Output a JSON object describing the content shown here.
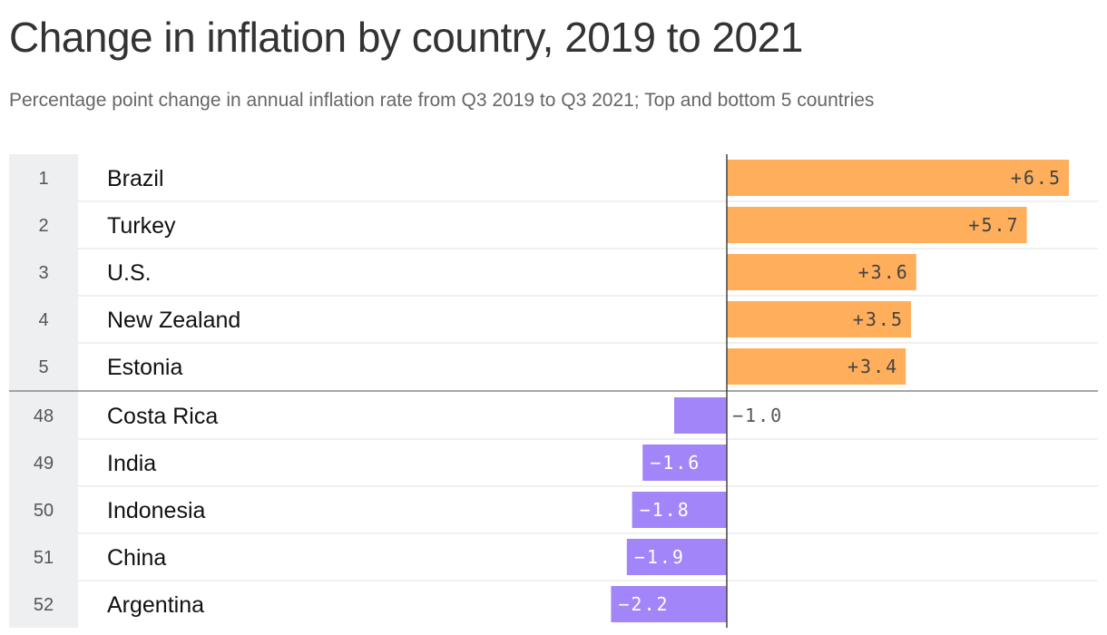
{
  "header": {
    "title": "Change in inflation by country, 2019 to 2021",
    "subtitle": "Percentage point change in annual inflation rate from Q3 2019 to Q3 2021; Top and bottom 5 countries"
  },
  "colors": {
    "positive": "#ffae5b",
    "negative": "#a285f9",
    "rank_bg": "#eeeff1",
    "divider": "#e2e2e2",
    "axis": "#444444"
  },
  "chart_data": {
    "type": "bar",
    "orientation": "horizontal",
    "xlim": [
      -2.2,
      6.5
    ],
    "rows": [
      {
        "rank": "1",
        "country": "Brazil",
        "value": 6.5,
        "label": "+6.5",
        "group": "top"
      },
      {
        "rank": "2",
        "country": "Turkey",
        "value": 5.7,
        "label": "+5.7",
        "group": "top"
      },
      {
        "rank": "3",
        "country": "U.S.",
        "value": 3.6,
        "label": "+3.6",
        "group": "top"
      },
      {
        "rank": "4",
        "country": "New Zealand",
        "value": 3.5,
        "label": "+3.5",
        "group": "top"
      },
      {
        "rank": "5",
        "country": "Estonia",
        "value": 3.4,
        "label": "+3.4",
        "group": "top"
      },
      {
        "rank": "48",
        "country": "Costa Rica",
        "value": -1.0,
        "label": "−1.0",
        "group": "bottom"
      },
      {
        "rank": "49",
        "country": "India",
        "value": -1.6,
        "label": "−1.6",
        "group": "bottom"
      },
      {
        "rank": "50",
        "country": "Indonesia",
        "value": -1.8,
        "label": "−1.8",
        "group": "bottom"
      },
      {
        "rank": "51",
        "country": "China",
        "value": -1.9,
        "label": "−1.9",
        "group": "bottom"
      },
      {
        "rank": "52",
        "country": "Argentina",
        "value": -2.2,
        "label": "−2.2",
        "group": "bottom"
      }
    ]
  }
}
